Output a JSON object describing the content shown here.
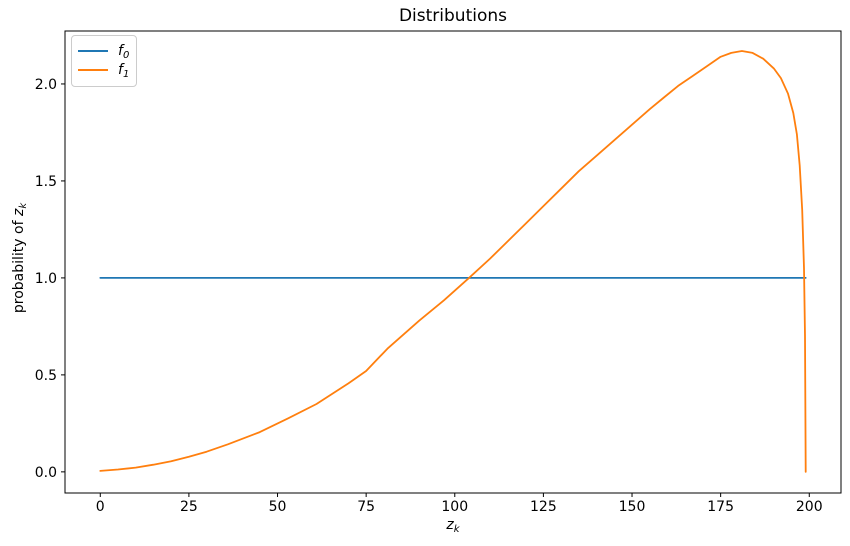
{
  "chart_data": {
    "type": "line",
    "title": "Distributions",
    "xlabel": {
      "var": "z",
      "sub": "k"
    },
    "ylabel": {
      "prefix": "probability of ",
      "var": "z",
      "sub": "k"
    },
    "xlim": [
      -9.95,
      208.95
    ],
    "ylim": [
      -0.109,
      2.273
    ],
    "grid": false,
    "xticks": [
      {
        "value": 0,
        "label": "0"
      },
      {
        "value": 25,
        "label": "25"
      },
      {
        "value": 50,
        "label": "50"
      },
      {
        "value": 75,
        "label": "75"
      },
      {
        "value": 100,
        "label": "100"
      },
      {
        "value": 125,
        "label": "125"
      },
      {
        "value": 150,
        "label": "150"
      },
      {
        "value": 175,
        "label": "175"
      },
      {
        "value": 200,
        "label": "200"
      }
    ],
    "yticks": [
      {
        "value": 0.0,
        "label": "0.0"
      },
      {
        "value": 0.5,
        "label": "0.5"
      },
      {
        "value": 1.0,
        "label": "1.0"
      },
      {
        "value": 1.5,
        "label": "1.5"
      },
      {
        "value": 2.0,
        "label": "2.0"
      }
    ],
    "legend": {
      "position": "upper left",
      "entries": [
        {
          "base": "f",
          "sub": "0",
          "color": "#1f77b4"
        },
        {
          "base": "f",
          "sub": "1",
          "color": "#ff7f0e"
        }
      ]
    },
    "series": [
      {
        "name": "f0",
        "color": "#1f77b4",
        "style": "solid",
        "description": "uniform distribution, constant probability 1.0 over z = 0..199",
        "points": [
          [
            0,
            1.0
          ],
          [
            199,
            1.0
          ]
        ]
      },
      {
        "name": "f1",
        "color": "#ff7f0e",
        "style": "solid",
        "description": "skewed distribution rising from 0 at z=0 to a peak of ~2.17 near z=181, then dropping steeply to 0 at z=199",
        "points": [
          [
            0,
            0.005
          ],
          [
            5,
            0.012
          ],
          [
            10,
            0.022
          ],
          [
            15,
            0.037
          ],
          [
            20,
            0.055
          ],
          [
            25,
            0.078
          ],
          [
            30,
            0.104
          ],
          [
            36,
            0.142
          ],
          [
            45,
            0.205
          ],
          [
            53,
            0.276
          ],
          [
            61,
            0.35
          ],
          [
            70,
            0.456
          ],
          [
            75,
            0.52
          ],
          [
            81,
            0.635
          ],
          [
            90,
            0.78
          ],
          [
            97,
            0.885
          ],
          [
            104,
            1.0
          ],
          [
            110,
            1.1
          ],
          [
            115,
            1.19
          ],
          [
            120,
            1.28
          ],
          [
            125,
            1.37
          ],
          [
            130,
            1.46
          ],
          [
            135,
            1.55
          ],
          [
            140,
            1.63
          ],
          [
            145,
            1.71
          ],
          [
            150,
            1.79
          ],
          [
            155,
            1.87
          ],
          [
            159,
            1.93
          ],
          [
            163,
            1.99
          ],
          [
            167,
            2.04
          ],
          [
            171,
            2.09
          ],
          [
            175,
            2.14
          ],
          [
            178,
            2.16
          ],
          [
            181,
            2.17
          ],
          [
            184,
            2.16
          ],
          [
            187,
            2.13
          ],
          [
            190,
            2.08
          ],
          [
            192,
            2.03
          ],
          [
            194,
            1.95
          ],
          [
            195.5,
            1.85
          ],
          [
            196.5,
            1.74
          ],
          [
            197.3,
            1.58
          ],
          [
            198,
            1.35
          ],
          [
            198.5,
            1.05
          ],
          [
            198.8,
            0.7
          ],
          [
            199,
            0.0
          ]
        ]
      }
    ]
  }
}
